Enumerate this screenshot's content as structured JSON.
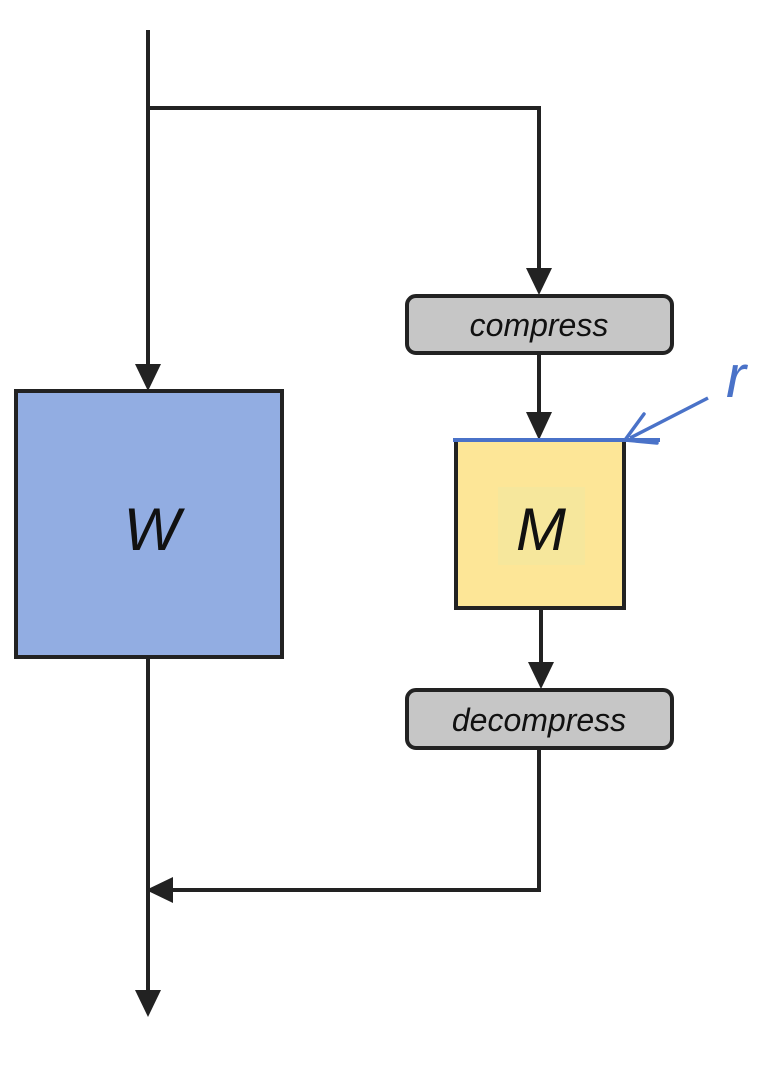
{
  "blocks": {
    "w": {
      "label": "W",
      "fill": "#92ade2"
    },
    "m": {
      "label": "M",
      "fill": "#fde697",
      "inner_fill": "#f6e79c"
    },
    "compress": {
      "label": "compress",
      "fill": "#c6c6c6"
    },
    "decompress": {
      "label": "decompress",
      "fill": "#c6c6c6"
    }
  },
  "annotation": {
    "label": "r",
    "color": "#4a72c8"
  },
  "colors": {
    "line": "#222222"
  }
}
